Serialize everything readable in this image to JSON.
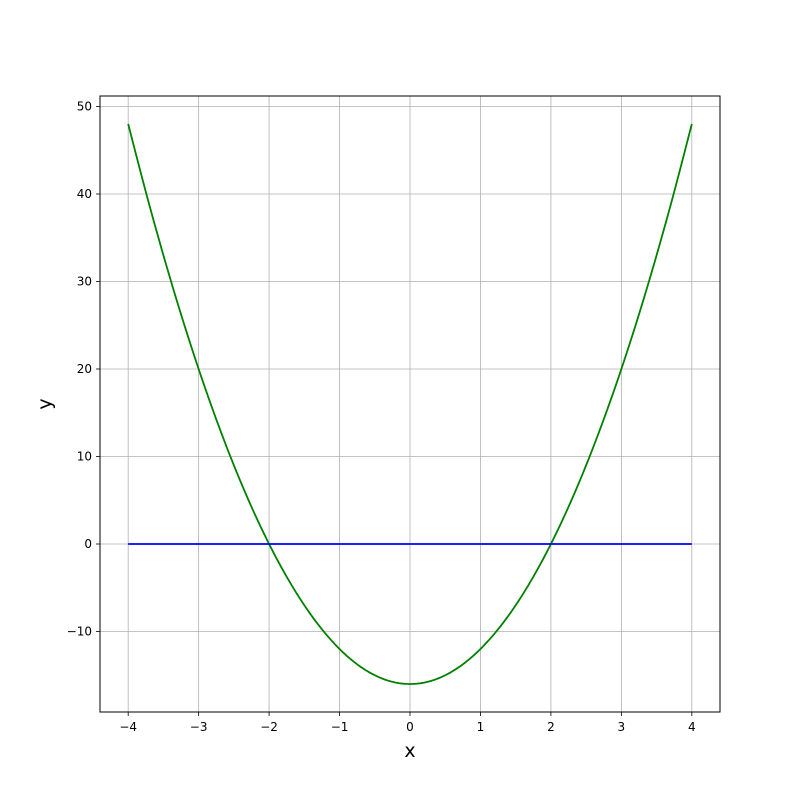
{
  "chart_data": {
    "type": "line",
    "title": "",
    "xlabel": "x",
    "ylabel": "y",
    "xlim": [
      -4.4,
      4.4
    ],
    "ylim": [
      -19.2,
      51.2
    ],
    "xticks": [
      -4,
      -3,
      -2,
      -1,
      0,
      1,
      2,
      3,
      4
    ],
    "xtick_labels": [
      "−4",
      "−3",
      "−2",
      "−1",
      "0",
      "1",
      "2",
      "3",
      "4"
    ],
    "yticks": [
      -10,
      0,
      10,
      20,
      30,
      40,
      50
    ],
    "ytick_labels": [
      "−10",
      "0",
      "10",
      "20",
      "30",
      "40",
      "50"
    ],
    "grid": true,
    "series": [
      {
        "color": "#008000",
        "x": [
          -4,
          -3.75,
          -3.5,
          -3.25,
          -3,
          -2.75,
          -2.5,
          -2.25,
          -2,
          -1.75,
          -1.5,
          -1.25,
          -1,
          -0.75,
          -0.5,
          -0.25,
          0,
          0.25,
          0.5,
          0.75,
          1,
          1.25,
          1.5,
          1.75,
          2,
          2.25,
          2.5,
          2.75,
          3,
          3.25,
          3.5,
          3.75,
          4
        ],
        "y": [
          48,
          40.25,
          33,
          26.25,
          20,
          14.25,
          9,
          4.25,
          0,
          -3.75,
          -7,
          -9.75,
          -12,
          -13.75,
          -15,
          -15.75,
          -16,
          -15.75,
          -15,
          -13.75,
          -12,
          -9.75,
          -7,
          -3.75,
          0,
          4.25,
          9,
          14.25,
          20,
          26.25,
          33,
          40.25,
          48
        ]
      },
      {
        "color": "#0000ff",
        "x": [
          -4,
          4
        ],
        "y": [
          0,
          0
        ]
      }
    ]
  }
}
